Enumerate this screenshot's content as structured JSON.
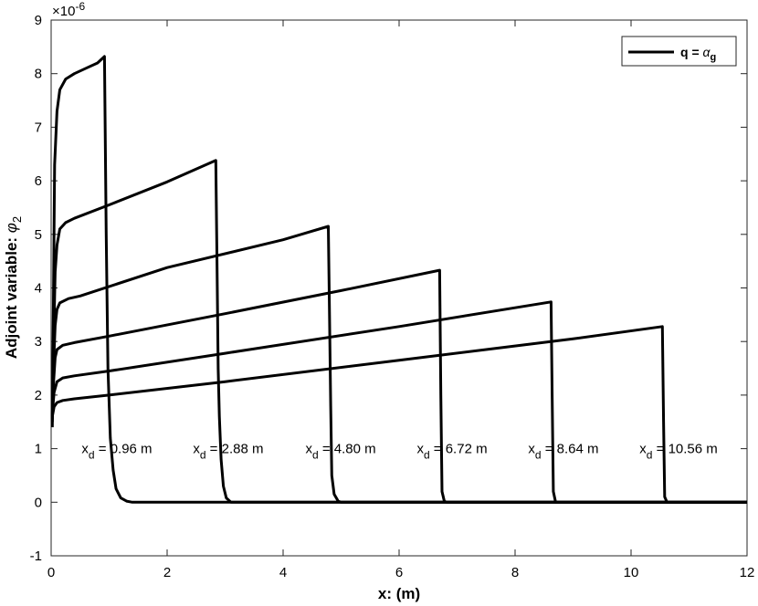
{
  "chart_data": {
    "type": "line",
    "title": "",
    "xlabel": "x: (m)",
    "ylabel": {
      "main": "Adjoint variable: ",
      "symbol": "φ",
      "subscript": "2"
    },
    "xlim": [
      0,
      12
    ],
    "ylim": [
      -1,
      9
    ],
    "y_exponent": {
      "base": "×10",
      "power": "-6"
    },
    "xticks": [
      "0",
      "2",
      "4",
      "6",
      "8",
      "10",
      "12"
    ],
    "yticks": [
      "-1",
      "0",
      "1",
      "2",
      "3",
      "4",
      "5",
      "6",
      "7",
      "8",
      "9"
    ],
    "grid": false,
    "line_color": "#000000",
    "legend": {
      "position": "top-right",
      "entries": [
        {
          "bold": "q = ",
          "symbol": "α",
          "subscript": "g"
        }
      ]
    },
    "series": [
      {
        "xd_label": {
          "var": "x",
          "sub": "d",
          "value": " = 0.96 m"
        },
        "points": [
          [
            0.02,
            1.4
          ],
          [
            0.04,
            3.7
          ],
          [
            0.06,
            6.3
          ],
          [
            0.1,
            7.3
          ],
          [
            0.15,
            7.7
          ],
          [
            0.25,
            7.9
          ],
          [
            0.4,
            8.0
          ],
          [
            0.6,
            8.1
          ],
          [
            0.8,
            8.2
          ],
          [
            0.92,
            8.32
          ],
          [
            0.95,
            5.0
          ],
          [
            0.98,
            2.5
          ],
          [
            1.02,
            1.2
          ],
          [
            1.07,
            0.6
          ],
          [
            1.12,
            0.25
          ],
          [
            1.2,
            0.08
          ],
          [
            1.3,
            0.02
          ],
          [
            1.4,
            0.0
          ],
          [
            12.0,
            0.0
          ]
        ]
      },
      {
        "xd_label": {
          "var": "x",
          "sub": "d",
          "value": " = 2.88 m"
        },
        "points": [
          [
            0.02,
            1.5
          ],
          [
            0.04,
            2.8
          ],
          [
            0.07,
            4.3
          ],
          [
            0.1,
            4.8
          ],
          [
            0.15,
            5.1
          ],
          [
            0.25,
            5.22
          ],
          [
            0.4,
            5.3
          ],
          [
            1.0,
            5.55
          ],
          [
            2.0,
            5.98
          ],
          [
            2.84,
            6.38
          ],
          [
            2.86,
            4.5
          ],
          [
            2.88,
            2.5
          ],
          [
            2.9,
            1.6
          ],
          [
            2.93,
            0.8
          ],
          [
            2.97,
            0.3
          ],
          [
            3.02,
            0.08
          ],
          [
            3.1,
            0.0
          ],
          [
            12.0,
            0.0
          ]
        ]
      },
      {
        "xd_label": {
          "var": "x",
          "sub": "d",
          "value": " = 4.80 m"
        },
        "points": [
          [
            0.02,
            1.55
          ],
          [
            0.04,
            2.5
          ],
          [
            0.07,
            3.3
          ],
          [
            0.1,
            3.6
          ],
          [
            0.15,
            3.72
          ],
          [
            0.3,
            3.8
          ],
          [
            0.5,
            3.85
          ],
          [
            2.0,
            4.38
          ],
          [
            4.0,
            4.9
          ],
          [
            4.78,
            5.15
          ],
          [
            4.8,
            3.5
          ],
          [
            4.82,
            1.8
          ],
          [
            4.84,
            0.5
          ],
          [
            4.88,
            0.15
          ],
          [
            4.95,
            0.02
          ],
          [
            5.0,
            0.0
          ],
          [
            12.0,
            0.0
          ]
        ]
      },
      {
        "xd_label": {
          "var": "x",
          "sub": "d",
          "value": " = 6.72 m"
        },
        "points": [
          [
            0.02,
            1.6
          ],
          [
            0.04,
            2.2
          ],
          [
            0.07,
            2.7
          ],
          [
            0.1,
            2.85
          ],
          [
            0.2,
            2.93
          ],
          [
            0.4,
            2.98
          ],
          [
            1.0,
            3.1
          ],
          [
            3.0,
            3.52
          ],
          [
            5.0,
            3.95
          ],
          [
            6.7,
            4.33
          ],
          [
            6.72,
            2.0
          ],
          [
            6.74,
            0.2
          ],
          [
            6.78,
            0.02
          ],
          [
            6.82,
            0.0
          ],
          [
            12.0,
            0.0
          ]
        ]
      },
      {
        "xd_label": {
          "var": "x",
          "sub": "d",
          "value": " = 8.64 m"
        },
        "points": [
          [
            0.02,
            1.65
          ],
          [
            0.05,
            2.05
          ],
          [
            0.1,
            2.25
          ],
          [
            0.2,
            2.32
          ],
          [
            0.4,
            2.36
          ],
          [
            1.0,
            2.45
          ],
          [
            3.0,
            2.78
          ],
          [
            6.0,
            3.28
          ],
          [
            8.62,
            3.74
          ],
          [
            8.64,
            2.0
          ],
          [
            8.66,
            0.2
          ],
          [
            8.7,
            0.0
          ],
          [
            12.0,
            0.0
          ]
        ]
      },
      {
        "xd_label": {
          "var": "x",
          "sub": "d",
          "value": " = 10.56 m"
        },
        "points": [
          [
            0.02,
            1.6
          ],
          [
            0.05,
            1.78
          ],
          [
            0.1,
            1.86
          ],
          [
            0.2,
            1.9
          ],
          [
            0.4,
            1.93
          ],
          [
            1.0,
            2.0
          ],
          [
            3.0,
            2.25
          ],
          [
            6.0,
            2.65
          ],
          [
            9.0,
            3.05
          ],
          [
            10.54,
            3.28
          ],
          [
            10.56,
            1.5
          ],
          [
            10.58,
            0.1
          ],
          [
            10.62,
            0.0
          ],
          [
            12.0,
            0.0
          ]
        ]
      }
    ]
  }
}
